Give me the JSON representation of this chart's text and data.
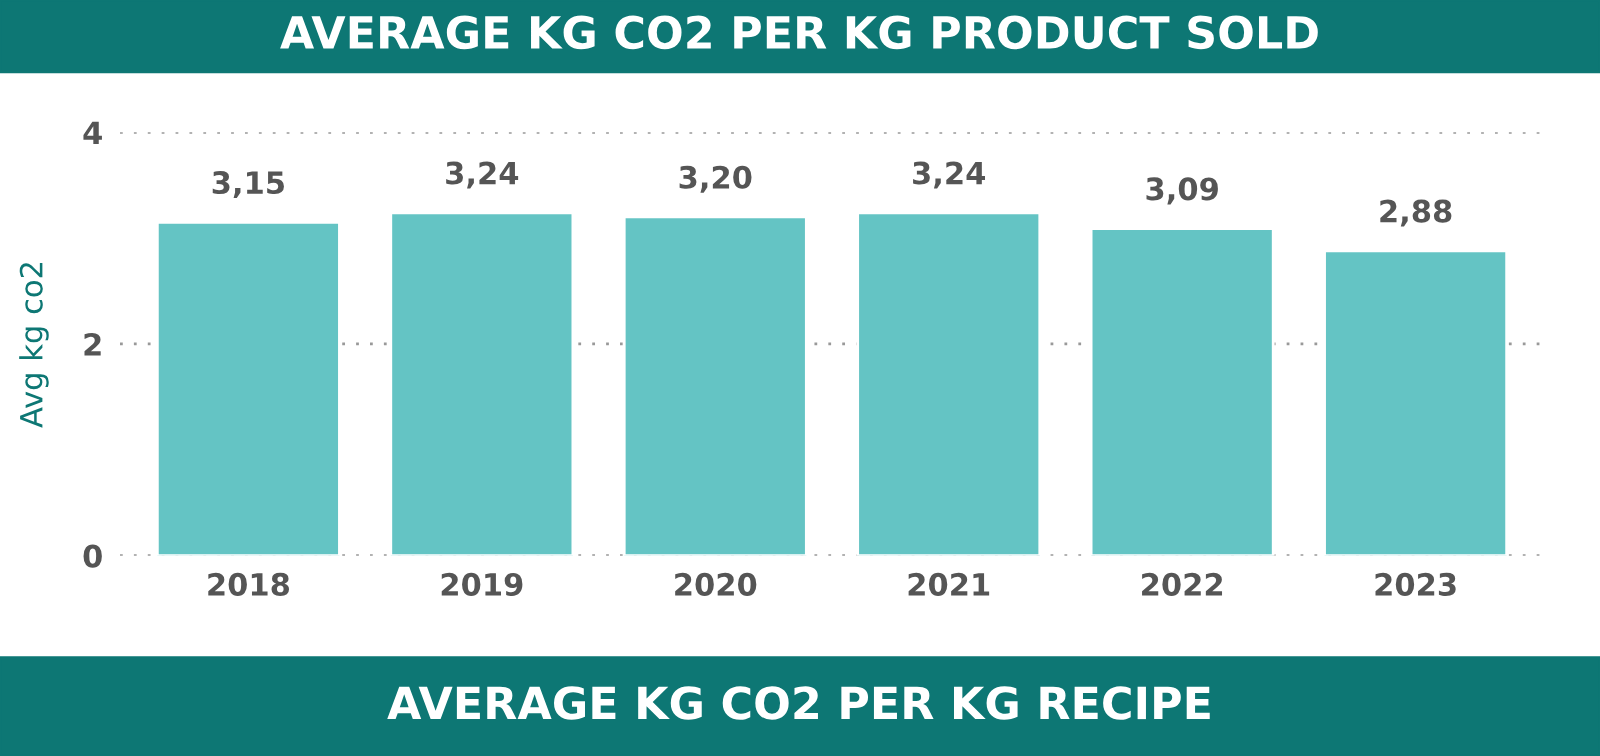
{
  "chart_data": {
    "type": "bar",
    "title": "AVERAGE KG CO2 PER KG PRODUCT SOLD",
    "ylabel": "Avg kg co2",
    "categories": [
      "2018",
      "2019",
      "2020",
      "2021",
      "2022",
      "2023"
    ],
    "values": [
      3.15,
      3.24,
      3.2,
      3.24,
      3.09,
      2.88
    ],
    "value_labels": [
      "3,15",
      "3,24",
      "3,20",
      "3,24",
      "3,09",
      "2,88"
    ],
    "color": "#64c4c4",
    "ylim": [
      0,
      4
    ],
    "yticks": [
      0,
      2,
      4
    ],
    "grid": "y",
    "annotations": [
      "AVERAGE KG CO2 PER KG RECIPE"
    ]
  }
}
